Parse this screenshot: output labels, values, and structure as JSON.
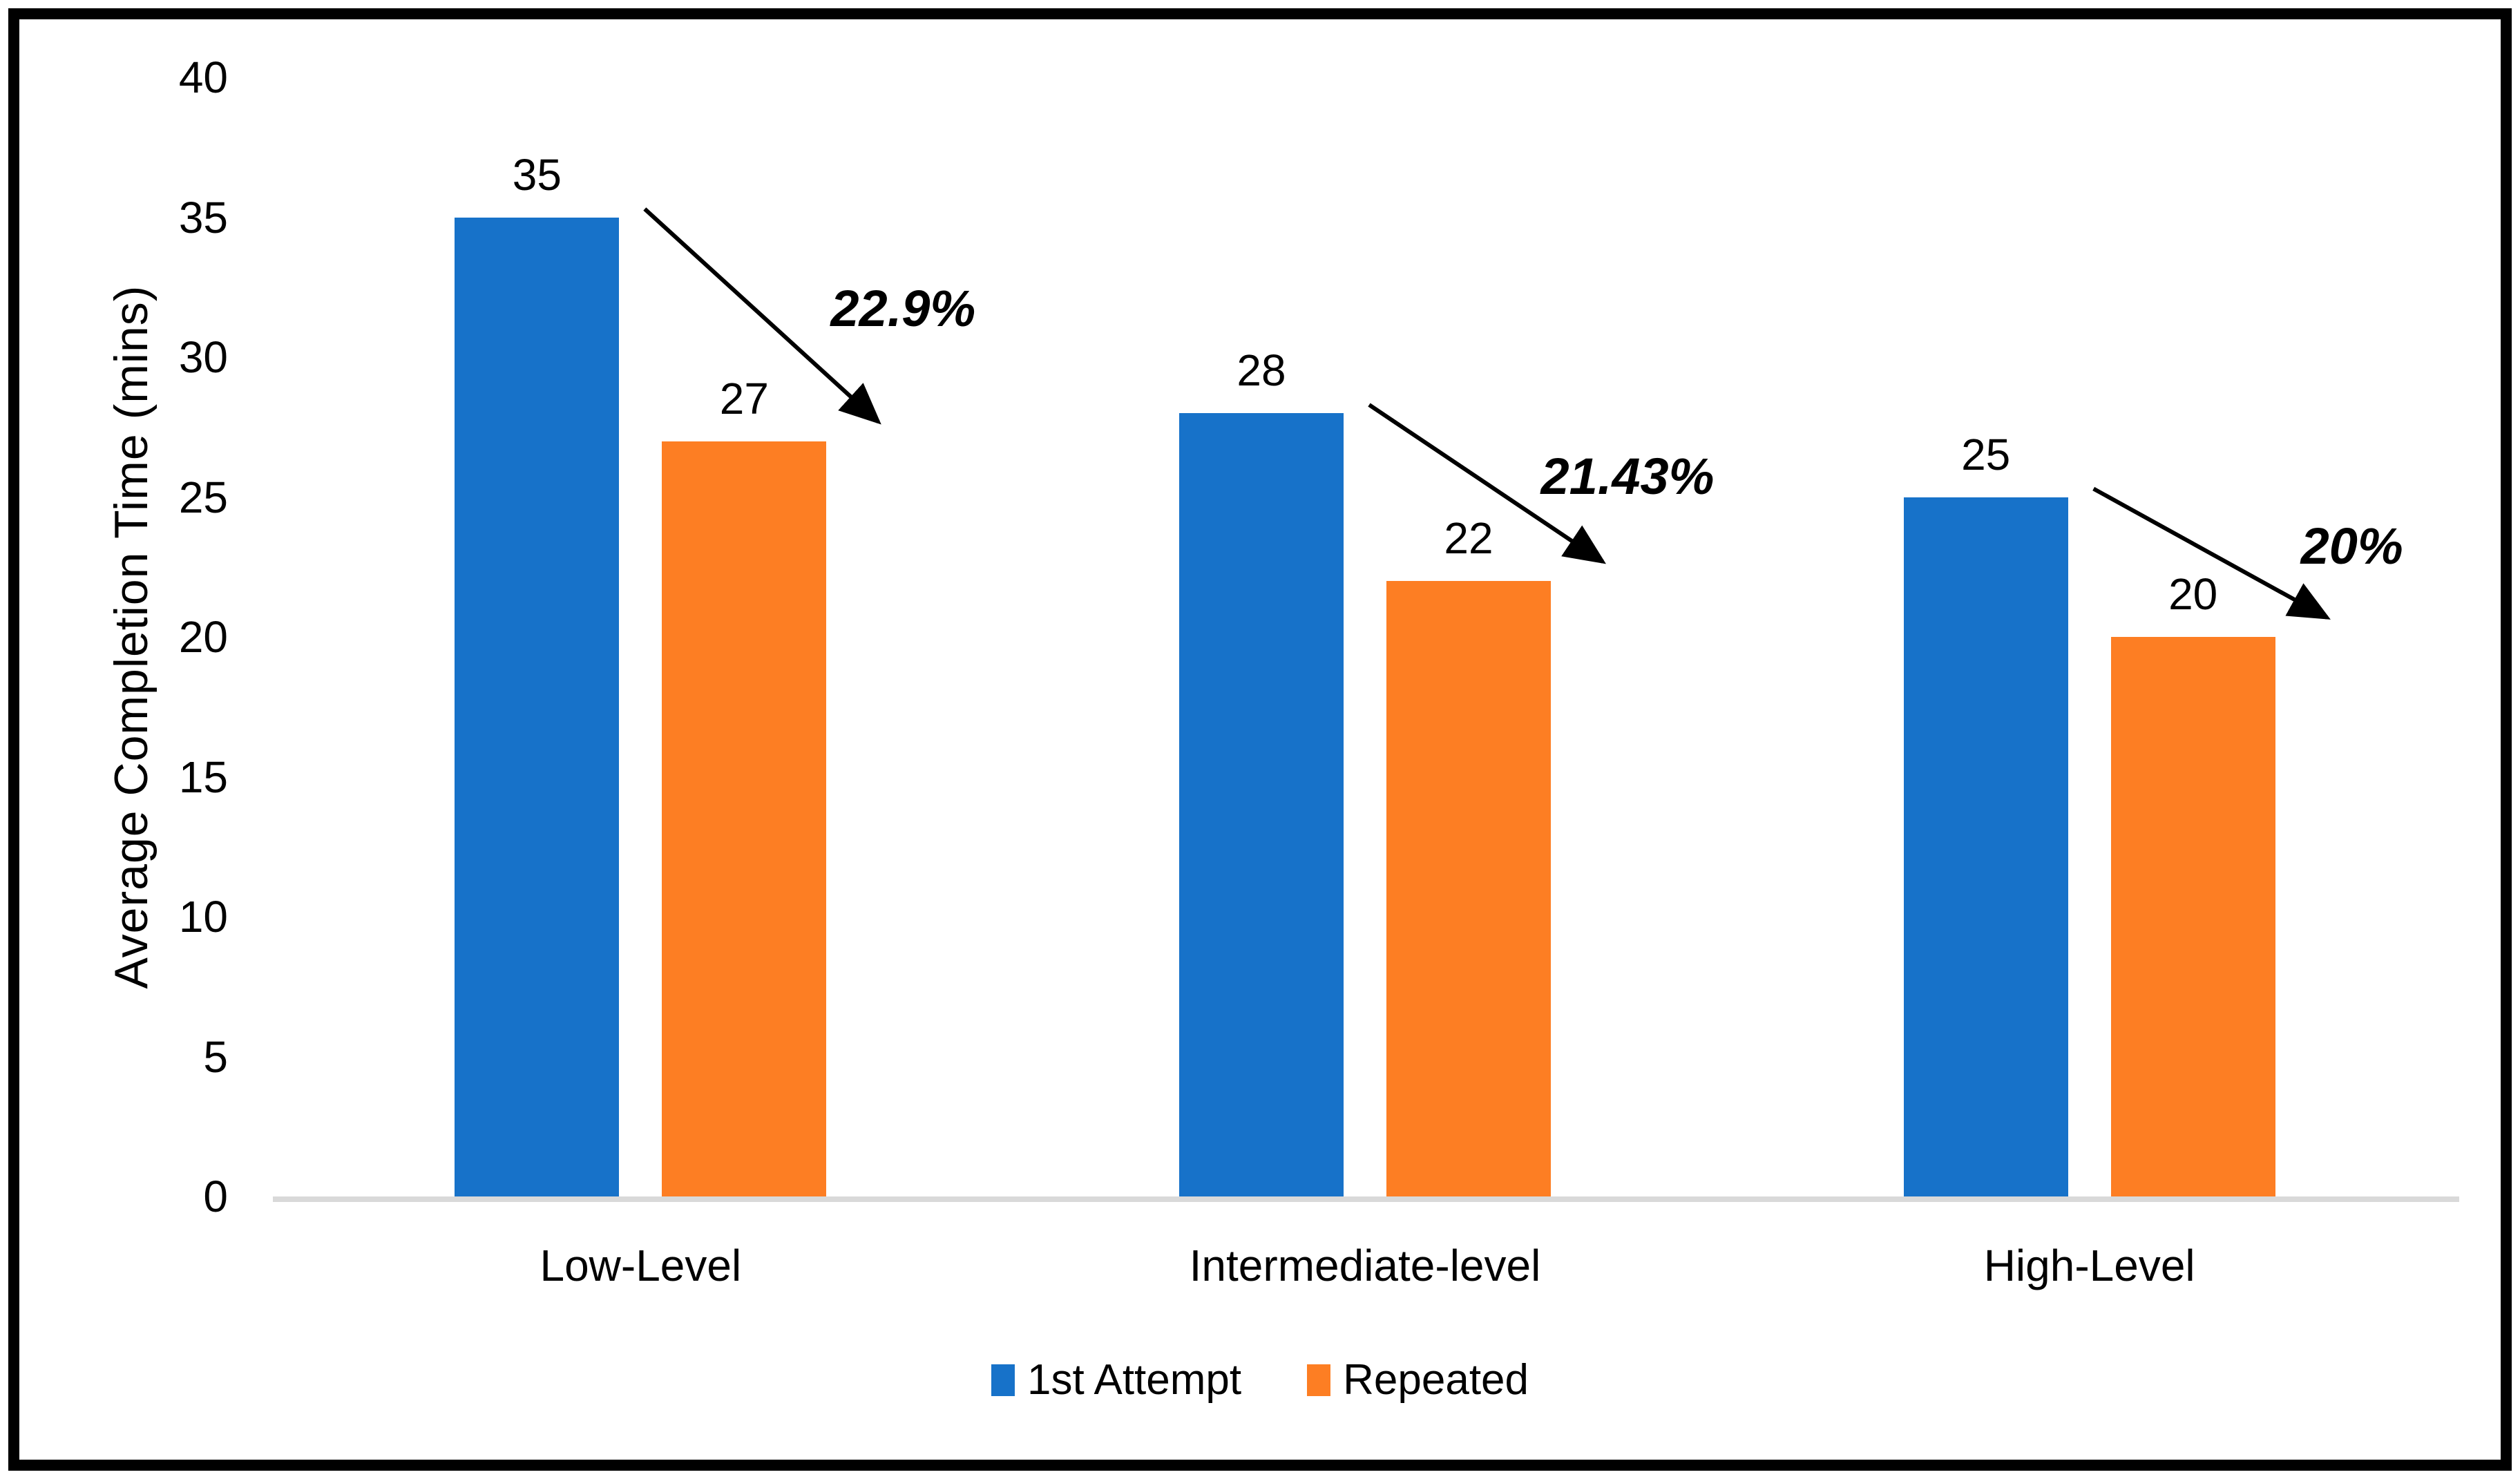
{
  "chart_data": {
    "type": "bar",
    "categories": [
      "Low-Level",
      "Intermediate-level",
      "High-Level"
    ],
    "series": [
      {
        "name": "1st Attempt",
        "color": "#1772C9",
        "values": [
          35,
          28,
          25
        ]
      },
      {
        "name": "Repeated",
        "color": "#FD7E23",
        "values": [
          27,
          22,
          20
        ]
      }
    ],
    "annotations": [
      "22.9%",
      "21.43%",
      "20%"
    ],
    "ylabel": "Average Completion Time (mins)",
    "yticks": [
      0,
      5,
      10,
      15,
      20,
      25,
      30,
      35,
      40
    ],
    "ylim": [
      0,
      40
    ],
    "grid": false,
    "legend_position": "bottom",
    "axis_line_color": "#D9D9D9",
    "annotation_color": "#000000",
    "frame_color": "#000000"
  }
}
